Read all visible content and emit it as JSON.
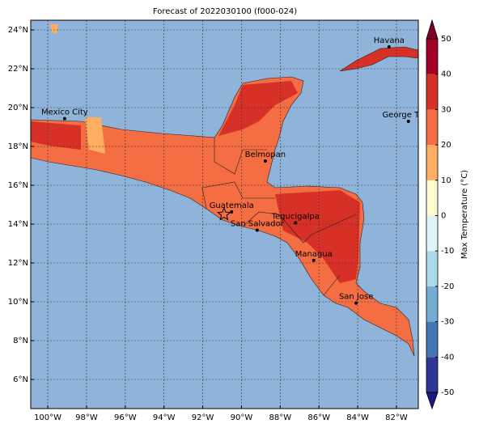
{
  "map": {
    "title": "Forecast of 2022030100 (f000-024)",
    "xlim": [
      -100.88,
      -80.87
    ],
    "ylim": [
      4.5,
      24.5
    ],
    "xticks": [
      {
        "value": -100,
        "label": "100°W"
      },
      {
        "value": -98,
        "label": "98°W"
      },
      {
        "value": -96,
        "label": "96°W"
      },
      {
        "value": -94,
        "label": "94°W"
      },
      {
        "value": -92,
        "label": "92°W"
      },
      {
        "value": -90,
        "label": "90°W"
      },
      {
        "value": -88,
        "label": "88°W"
      },
      {
        "value": -86,
        "label": "86°W"
      },
      {
        "value": -84,
        "label": "84°W"
      },
      {
        "value": -82,
        "label": "82°W"
      }
    ],
    "yticks": [
      {
        "value": 6,
        "label": "6°N"
      },
      {
        "value": 8,
        "label": "8°N"
      },
      {
        "value": 10,
        "label": "10°N"
      },
      {
        "value": 12,
        "label": "12°N"
      },
      {
        "value": 14,
        "label": "14°N"
      },
      {
        "value": 16,
        "label": "16°N"
      },
      {
        "value": 18,
        "label": "18°N"
      },
      {
        "value": 20,
        "label": "20°N"
      },
      {
        "value": 22,
        "label": "22°N"
      },
      {
        "value": 24,
        "label": "24°N"
      }
    ],
    "grid": true,
    "cities": [
      {
        "name": "Mexico City",
        "lon": -99.13,
        "lat": 19.43
      },
      {
        "name": "Havana",
        "lon": -82.38,
        "lat": 23.13
      },
      {
        "name": "George Town",
        "lon": -81.38,
        "lat": 19.29
      },
      {
        "name": "Belmopan",
        "lon": -88.77,
        "lat": 17.25
      },
      {
        "name": "Guatemala",
        "lon": -90.51,
        "lat": 14.63
      },
      {
        "name": "Tegucigalpa",
        "lon": -87.21,
        "lat": 14.07
      },
      {
        "name": "San Salvador",
        "lon": -89.19,
        "lat": 13.69
      },
      {
        "name": "Managua",
        "lon": -86.27,
        "lat": 12.13
      },
      {
        "name": "San Jose",
        "lon": -84.08,
        "lat": 9.93
      }
    ],
    "star": {
      "lon": -90.9,
      "lat": 14.5
    },
    "colorbar": {
      "label": "Max Temperature (°C)",
      "lim": [
        -50,
        50
      ],
      "ticks": [
        -50,
        -40,
        -30,
        -20,
        -10,
        0,
        10,
        20,
        30,
        40,
        50
      ],
      "colors": [
        "#313695",
        "#4575b4",
        "#74add1",
        "#abd9e9",
        "#e0f3f8",
        "#fffbd0",
        "#fdae61",
        "#f46d43",
        "#d73027",
        "#a50026"
      ],
      "under_color": "#1a1a80",
      "over_color": "#800026"
    }
  }
}
